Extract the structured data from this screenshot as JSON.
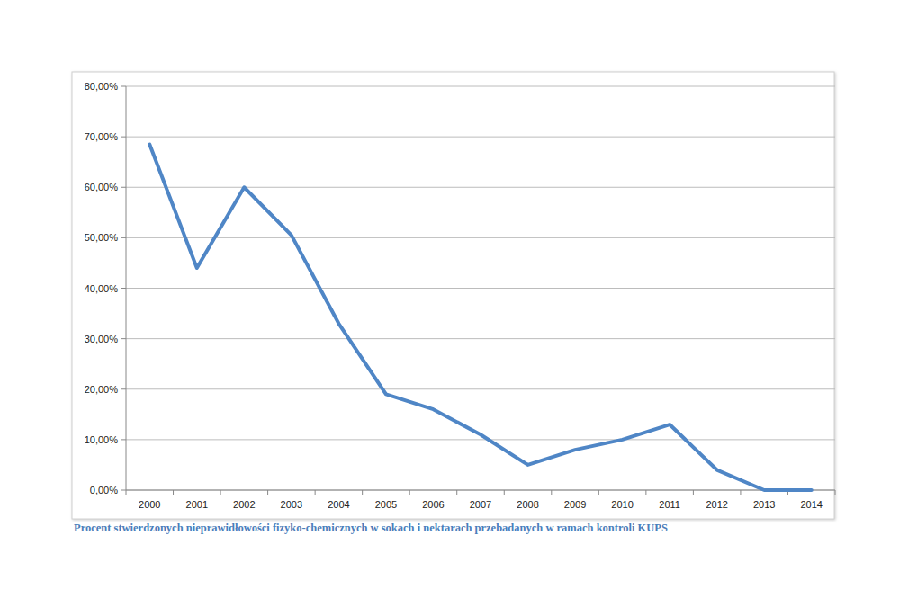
{
  "chart_data": {
    "type": "line",
    "title": "Procent stwierdzonych nieprawidłowości fizyko-chemicznych w sokach i nektarach przebadanych w ramach kontroli KUPS",
    "categories": [
      "2000",
      "2001",
      "2002",
      "2003",
      "2004",
      "2005",
      "2006",
      "2007",
      "2008",
      "2009",
      "2010",
      "2011",
      "2012",
      "2013",
      "2014"
    ],
    "values": [
      68.5,
      44,
      60,
      50.5,
      33,
      19,
      16,
      11,
      5,
      8,
      10,
      13,
      4,
      0,
      0
    ],
    "color": "#4f86c6",
    "ylim": [
      0,
      80
    ],
    "yticks": [
      {
        "value": 0,
        "label": "0,00%"
      },
      {
        "value": 10,
        "label": "10,00%"
      },
      {
        "value": 20,
        "label": "20,00%"
      },
      {
        "value": 30,
        "label": "30,00%"
      },
      {
        "value": 40,
        "label": "40,00%"
      },
      {
        "value": 50,
        "label": "50,00%"
      },
      {
        "value": 60,
        "label": "60,00%"
      },
      {
        "value": 70,
        "label": "70,00%"
      },
      {
        "value": 80,
        "label": "80,00%"
      }
    ],
    "grid": true
  }
}
